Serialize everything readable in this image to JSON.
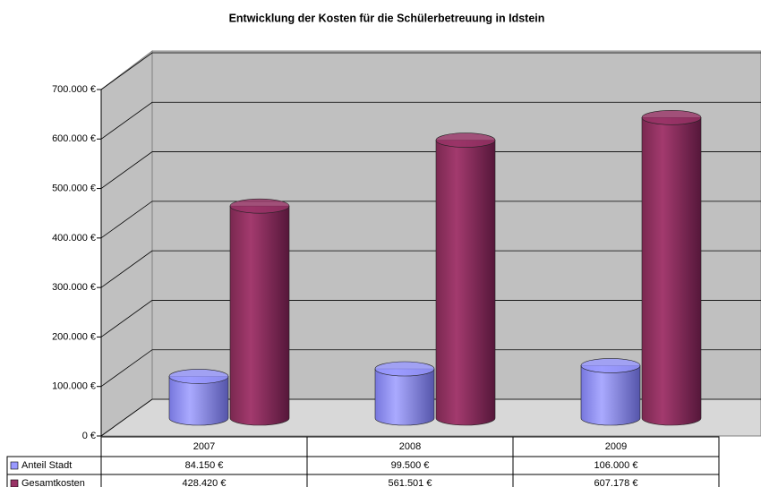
{
  "chart_data": {
    "type": "bar",
    "title": "Entwicklung der Kosten für die Schülerbetreuung in Idstein",
    "categories": [
      "2007",
      "2008",
      "2009"
    ],
    "series": [
      {
        "name": "Anteil Stadt",
        "color": "#9999ff",
        "values": [
          84150,
          99500,
          106000
        ],
        "value_labels": [
          "84.150 €",
          "99.500 €",
          "106.000 €"
        ]
      },
      {
        "name": "Gesamtkosten",
        "color": "#993366",
        "values": [
          428420,
          561501,
          607178
        ],
        "value_labels": [
          "428.420 €",
          "561.501 €",
          "607.178 €"
        ]
      }
    ],
    "ylim": [
      0,
      700000
    ],
    "yticks": [
      {
        "value": 0,
        "label": "0 €"
      },
      {
        "value": 100000,
        "label": "100.000 €"
      },
      {
        "value": 200000,
        "label": "200.000 €"
      },
      {
        "value": 300000,
        "label": "300.000 €"
      },
      {
        "value": 400000,
        "label": "400.000 €"
      },
      {
        "value": 500000,
        "label": "500.000 €"
      },
      {
        "value": 600000,
        "label": "600.000 €"
      },
      {
        "value": 700000,
        "label": "700.000 €"
      }
    ],
    "grid": true
  }
}
